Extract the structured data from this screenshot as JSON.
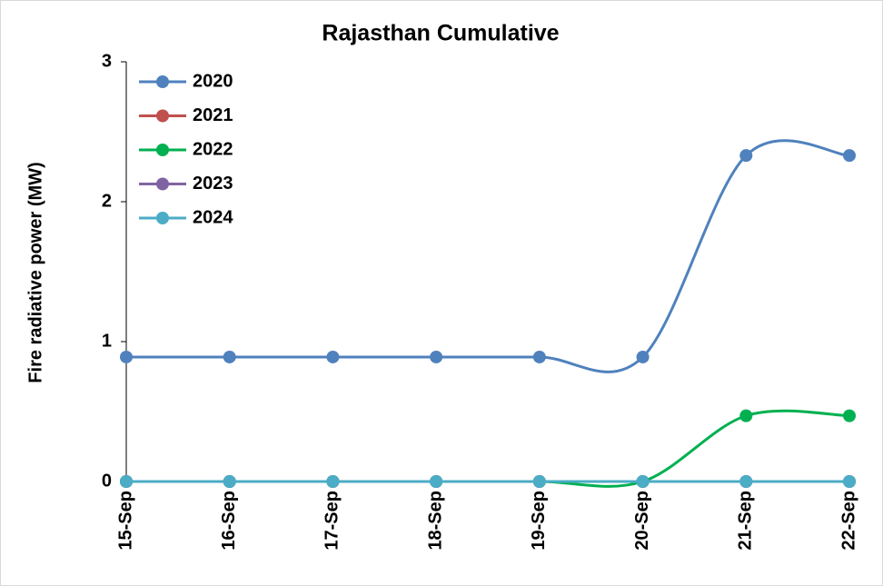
{
  "chart_data": {
    "type": "line",
    "title": "Rajasthan Cumulative",
    "ylabel": "Fire radiative power (MW)",
    "categories": [
      "15-Sep",
      "16-Sep",
      "17-Sep",
      "18-Sep",
      "19-Sep",
      "20-Sep",
      "21-Sep",
      "22-Sep"
    ],
    "series": [
      {
        "name": "2020",
        "color": "#4f81bd",
        "values": [
          0.89,
          0.89,
          0.89,
          0.89,
          0.89,
          0.89,
          2.33,
          2.33
        ]
      },
      {
        "name": "2021",
        "color": "#c0504d",
        "values": [
          0,
          0,
          0,
          0,
          0,
          0,
          0,
          0
        ]
      },
      {
        "name": "2022",
        "color": "#00b050",
        "values": [
          0,
          0,
          0,
          0,
          0,
          0,
          0.47,
          0.47
        ]
      },
      {
        "name": "2023",
        "color": "#8064a2",
        "values": [
          0,
          0,
          0,
          0,
          0,
          0,
          0,
          0
        ]
      },
      {
        "name": "2024",
        "color": "#4bacc6",
        "values": [
          0,
          0,
          0,
          0,
          0,
          0,
          0,
          0
        ]
      }
    ],
    "ylim": [
      0,
      3
    ],
    "yticks": [
      0,
      1,
      2,
      3
    ],
    "smooth": true,
    "legend": "upper left"
  }
}
